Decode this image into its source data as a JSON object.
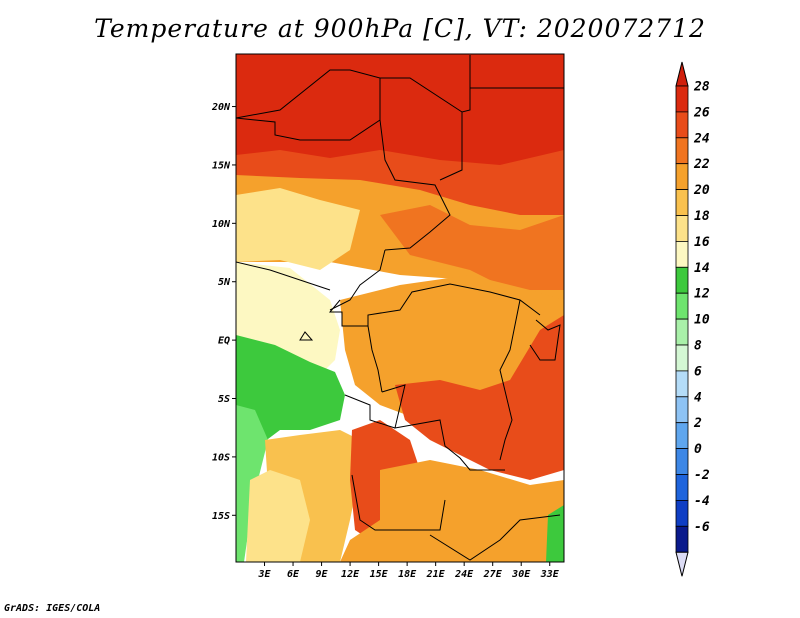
{
  "title": "Temperature at 900hPa [C], VT: 2020072712",
  "footer": "GrADS: IGES/COLA",
  "map": {
    "lon_range": [
      0,
      34.5
    ],
    "lat_range": [
      -19,
      24.5
    ],
    "lon_ticks": [
      {
        "value": 3,
        "label": "3E"
      },
      {
        "value": 6,
        "label": "6E"
      },
      {
        "value": 9,
        "label": "9E"
      },
      {
        "value": 12,
        "label": "12E"
      },
      {
        "value": 15,
        "label": "15E"
      },
      {
        "value": 18,
        "label": "18E"
      },
      {
        "value": 21,
        "label": "21E"
      },
      {
        "value": 24,
        "label": "24E"
      },
      {
        "value": 27,
        "label": "27E"
      },
      {
        "value": 30,
        "label": "30E"
      },
      {
        "value": 33,
        "label": "33E"
      }
    ],
    "lat_ticks": [
      {
        "value": 20,
        "label": "20N"
      },
      {
        "value": 15,
        "label": "15N"
      },
      {
        "value": 10,
        "label": "10N"
      },
      {
        "value": 5,
        "label": "5N"
      },
      {
        "value": 0,
        "label": "EQ"
      },
      {
        "value": -5,
        "label": "5S"
      },
      {
        "value": -10,
        "label": "10S"
      },
      {
        "value": -15,
        "label": "15S"
      }
    ]
  },
  "colorbar": {
    "levels": [
      {
        "label": "28",
        "color": "#db2a0f"
      },
      {
        "label": "26",
        "color": "#e84c1a"
      },
      {
        "label": "24",
        "color": "#f07420"
      },
      {
        "label": "22",
        "color": "#f5a12c"
      },
      {
        "label": "20",
        "color": "#f9c14e"
      },
      {
        "label": "18",
        "color": "#fde28a"
      },
      {
        "label": "16",
        "color": "#fdf8c2"
      },
      {
        "label": "14",
        "color": "#3dc93d"
      },
      {
        "label": "12",
        "color": "#6ee46e"
      },
      {
        "label": "10",
        "color": "#a9f0a9"
      },
      {
        "label": "8",
        "color": "#d4f7d4"
      },
      {
        "label": "6",
        "color": "#b4dcf8"
      },
      {
        "label": "4",
        "color": "#8ec3f4"
      },
      {
        "label": "2",
        "color": "#5fa6ee"
      },
      {
        "label": "0",
        "color": "#3d87e6"
      },
      {
        "label": "-2",
        "color": "#1e64dc"
      },
      {
        "label": "-4",
        "color": "#0f3ec4"
      },
      {
        "label": "-6",
        "color": "#0a1a8c"
      }
    ],
    "top_color": "#d01f0c",
    "bottom_color": "#dcdcf5"
  },
  "regions": [
    {
      "name": "hot-north",
      "color": "#db2a0f"
    },
    {
      "name": "hot-band",
      "color": "#e84c1a"
    },
    {
      "name": "warm-west-africa",
      "color": "#f5a12c"
    },
    {
      "name": "sahel-orange",
      "color": "#f07420"
    },
    {
      "name": "cool-coast",
      "color": "#fde28a"
    },
    {
      "name": "gulf-pale",
      "color": "#fdf8c2"
    },
    {
      "name": "central-orange",
      "color": "#f5a12c"
    },
    {
      "name": "congo-hot",
      "color": "#e84c1a"
    },
    {
      "name": "ocean-green",
      "color": "#3dc93d"
    },
    {
      "name": "ocean-lightgreen",
      "color": "#6ee46e"
    },
    {
      "name": "ocean-yellow",
      "color": "#f9c14e"
    },
    {
      "name": "ocean-pale",
      "color": "#fde28a"
    },
    {
      "name": "angola-hot",
      "color": "#e84c1a"
    },
    {
      "name": "south-orange",
      "color": "#f5a12c"
    },
    {
      "name": "east-green",
      "color": "#3dc93d"
    }
  ]
}
